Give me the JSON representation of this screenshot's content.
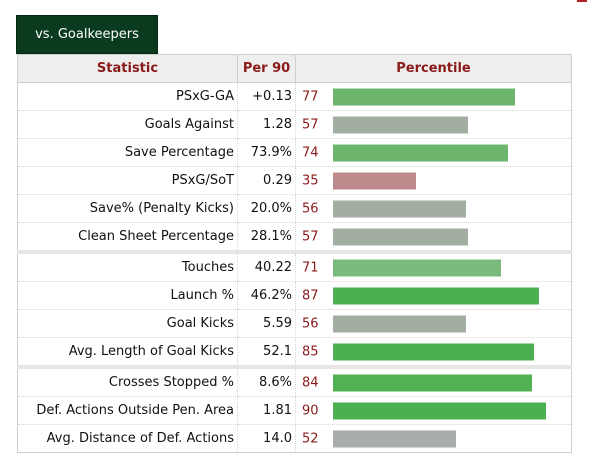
{
  "tab": {
    "label": "vs. Goalkeepers"
  },
  "header": {
    "statistic": "Statistic",
    "per90": "Per 90",
    "percentile": "Percentile"
  },
  "colors": {
    "high": "#4caf50",
    "mid_green": "#7cb97c",
    "neutral": "#a3aea3",
    "low": "#bc8a8a",
    "label": "#8a1a1a"
  },
  "groups": [
    {
      "rows": [
        {
          "stat": "PSxG-GA",
          "per90": "+0.13",
          "percentile": 77,
          "color": "#6db56d"
        },
        {
          "stat": "Goals Against",
          "per90": "1.28",
          "percentile": 57,
          "color": "#a3aea3"
        },
        {
          "stat": "Save Percentage",
          "per90": "73.9%",
          "percentile": 74,
          "color": "#6db56d"
        },
        {
          "stat": "PSxG/SoT",
          "per90": "0.29",
          "percentile": 35,
          "color": "#bc8a8a"
        },
        {
          "stat": "Save% (Penalty Kicks)",
          "per90": "20.0%",
          "percentile": 56,
          "color": "#a3aea3"
        },
        {
          "stat": "Clean Sheet Percentage",
          "per90": "28.1%",
          "percentile": 57,
          "color": "#a3aea3"
        }
      ]
    },
    {
      "rows": [
        {
          "stat": "Touches",
          "per90": "40.22",
          "percentile": 71,
          "color": "#7cb97c"
        },
        {
          "stat": "Launch %",
          "per90": "46.2%",
          "percentile": 87,
          "color": "#4caf50"
        },
        {
          "stat": "Goal Kicks",
          "per90": "5.59",
          "percentile": 56,
          "color": "#a3aea3"
        },
        {
          "stat": "Avg. Length of Goal Kicks",
          "per90": "52.1",
          "percentile": 85,
          "color": "#4caf50"
        }
      ]
    },
    {
      "rows": [
        {
          "stat": "Crosses Stopped %",
          "per90": "8.6%",
          "percentile": 84,
          "color": "#52b152"
        },
        {
          "stat": "Def. Actions Outside Pen. Area",
          "per90": "1.81",
          "percentile": 90,
          "color": "#4caf50"
        },
        {
          "stat": "Avg. Distance of Def. Actions",
          "per90": "14.0",
          "percentile": 52,
          "color": "#a8acaa"
        }
      ]
    }
  ]
}
